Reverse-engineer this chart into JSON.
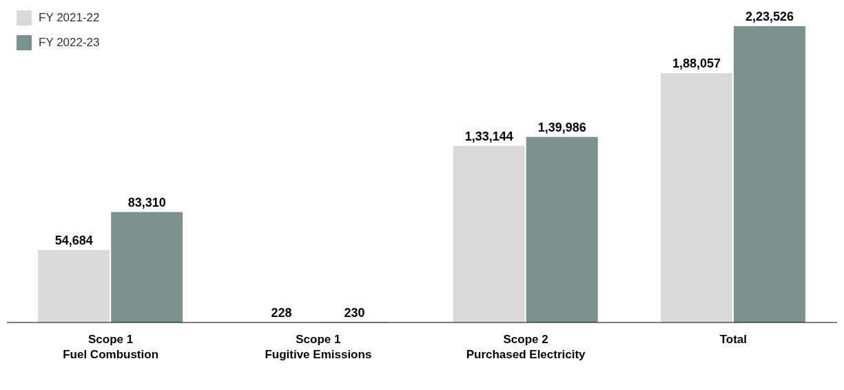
{
  "chart_data": {
    "type": "bar",
    "categories": [
      "Scope 1\nFuel Combustion",
      "Scope 1\nFugitive Emissions",
      "Scope 2\nPurchased Electricity",
      "Total"
    ],
    "series": [
      {
        "name": "FY 2021-22",
        "color": "#d9d9d9",
        "values": [
          54684,
          228,
          133144,
          188057
        ],
        "value_labels": [
          "54,684",
          "228",
          "1,33,144",
          "1,88,057"
        ]
      },
      {
        "name": "FY 2022-23",
        "color": "#7b918d",
        "values": [
          83310,
          230,
          139986,
          223526
        ],
        "value_labels": [
          "83,310",
          "230",
          "1,39,986",
          "2,23,526"
        ]
      }
    ],
    "legend": "top left",
    "tick_labels": "x"
  }
}
